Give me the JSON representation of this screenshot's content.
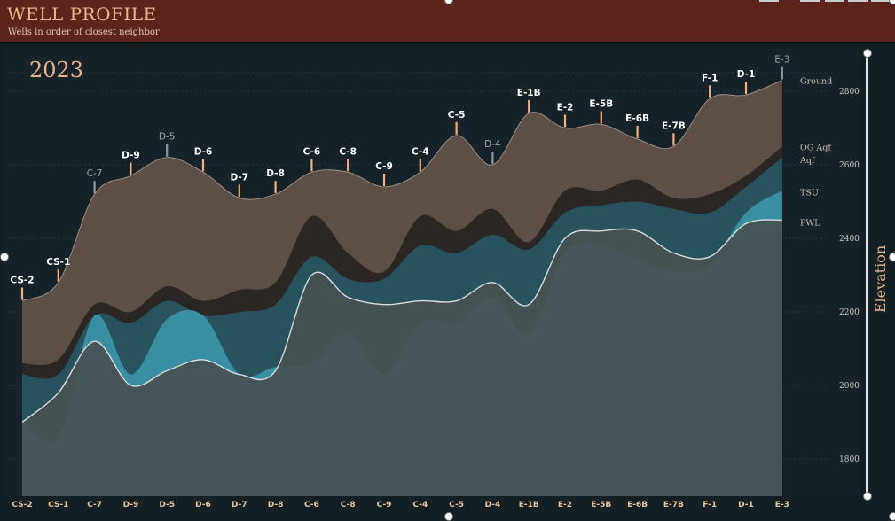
{
  "header": {
    "title": "WELL PROFILE",
    "subtitle": "Wells in order of closest neighbor"
  },
  "colors": {
    "header_bg": "#5c2519",
    "title": "#e8b78e",
    "background": "#141f24",
    "ground_fill": "#5b4f47",
    "og_aqf_fill": "#2a2624",
    "aqf_fill": "#28535e",
    "tsu_fill": "#3a8ea2",
    "base_fill": "#455150",
    "pwl_line": "#d6dcdf",
    "marker_orange": "#f0b184",
    "marker_gray": "#8b9aa0",
    "ylabel": "#e2b48f"
  },
  "chart_data": {
    "type": "area",
    "year_label": "2023",
    "ylabel": "Elevation",
    "ylim": [
      1700,
      2900
    ],
    "yticks": [
      "1800",
      "2000",
      "2200",
      "2400",
      "2600",
      "2800"
    ],
    "grid": true,
    "categories": [
      "CS-2",
      "CS-1",
      "C-7",
      "D-9",
      "D-5",
      "D-6",
      "D-7",
      "D-8",
      "C-6",
      "C-8",
      "C-9",
      "C-4",
      "C-5",
      "D-4",
      "E-1B",
      "E-2",
      "E-5B",
      "E-6B",
      "E-7B",
      "F-1",
      "D-1",
      "E-3"
    ],
    "highlighted_wells": [
      "C-7",
      "D-5",
      "D-4",
      "E-3"
    ],
    "series": [
      {
        "name": "Ground",
        "values": [
          2230,
          2280,
          2520,
          2570,
          2620,
          2580,
          2510,
          2520,
          2580,
          2580,
          2540,
          2580,
          2680,
          2600,
          2740,
          2700,
          2710,
          2670,
          2650,
          2780,
          2790,
          2830
        ]
      },
      {
        "name": "OG Aqf",
        "values": [
          2060,
          2070,
          2220,
          2200,
          2270,
          2230,
          2260,
          2280,
          2460,
          2360,
          2310,
          2460,
          2420,
          2480,
          2390,
          2530,
          2530,
          2560,
          2510,
          2520,
          2570,
          2650
        ]
      },
      {
        "name": "Aqf",
        "values": [
          2030,
          2030,
          2190,
          2170,
          2230,
          2190,
          2200,
          2220,
          2350,
          2290,
          2290,
          2380,
          2360,
          2410,
          2370,
          2470,
          2490,
          2500,
          2480,
          2470,
          2540,
          2620
        ]
      },
      {
        "name": "TSU",
        "values": [
          1900,
          1860,
          2190,
          2030,
          2180,
          2190,
          2030,
          2050,
          2060,
          2140,
          2030,
          2170,
          2170,
          2240,
          2140,
          2360,
          2380,
          2340,
          2310,
          2330,
          2470,
          2530
        ]
      },
      {
        "name": "PWL",
        "values": [
          1900,
          1980,
          2120,
          2000,
          2040,
          2070,
          2030,
          2040,
          2300,
          2240,
          2220,
          2230,
          2230,
          2280,
          2220,
          2400,
          2420,
          2420,
          2360,
          2350,
          2440,
          2450
        ]
      }
    ]
  }
}
